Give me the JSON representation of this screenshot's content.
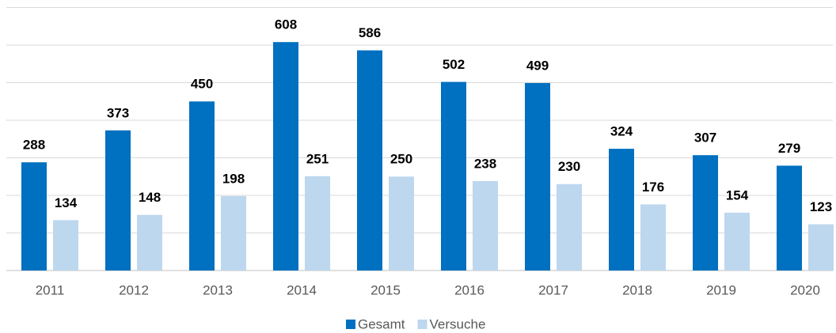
{
  "chart_data": {
    "type": "bar",
    "categories": [
      "2011",
      "2012",
      "2013",
      "2014",
      "2015",
      "2016",
      "2017",
      "2018",
      "2019",
      "2020"
    ],
    "series": [
      {
        "name": "Gesamt",
        "color": "#0070c0",
        "values": [
          288,
          373,
          450,
          608,
          586,
          502,
          499,
          324,
          307,
          279
        ]
      },
      {
        "name": "Versuche",
        "color": "#bdd7ee",
        "values": [
          134,
          148,
          198,
          251,
          250,
          238,
          230,
          176,
          154,
          123
        ]
      }
    ],
    "ylim": [
      0,
      700
    ],
    "yticks": [
      0,
      100,
      200,
      300,
      400,
      500,
      600,
      700
    ],
    "grid": true,
    "legend": "bottom"
  }
}
